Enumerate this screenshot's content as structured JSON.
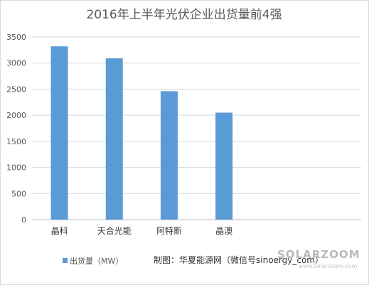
{
  "chart_data": {
    "type": "bar",
    "title": "2016年上半年光伏企业出货量前4强",
    "categories": [
      "晶科",
      "天合光能",
      "阿特斯",
      "晶澳"
    ],
    "series": [
      {
        "name": "出货量（MW）",
        "values": [
          3320,
          3090,
          2460,
          2050
        ],
        "color": "#5b9bd5"
      }
    ],
    "ylim": [
      0,
      3500
    ],
    "yticks": [
      0,
      500,
      1000,
      1500,
      2000,
      2500,
      3000,
      3500
    ],
    "grid": true,
    "legend_position": "bottom-left"
  },
  "source_note": "制图：华夏能源网（微信号sinoergy_com）",
  "watermark": {
    "brand": "SOLARZOOM",
    "url": "www.solarzoom.com"
  }
}
